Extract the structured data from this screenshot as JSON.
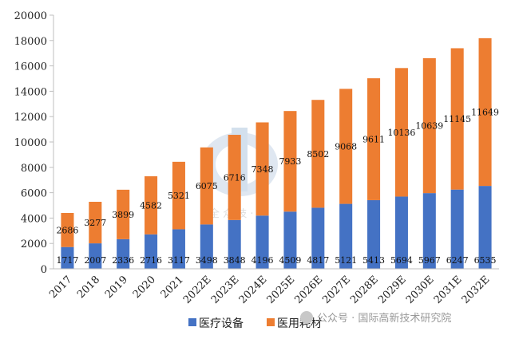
{
  "chart_data": {
    "type": "bar",
    "stacked": true,
    "categories": [
      "2017",
      "2018",
      "2019",
      "2020",
      "2021",
      "2022E",
      "2023E",
      "2024E",
      "2025E",
      "2026E",
      "2027E",
      "2028E",
      "2029E",
      "2030E",
      "2031E",
      "2032E"
    ],
    "series": [
      {
        "name": "医疗设备",
        "color": "#4472C4",
        "values": [
          1717,
          2007,
          2336,
          2716,
          3117,
          3498,
          3848,
          4196,
          4509,
          4817,
          5121,
          5413,
          5694,
          5967,
          6247,
          6535
        ]
      },
      {
        "name": "医用耗材",
        "color": "#ED7D31",
        "values": [
          2686,
          3277,
          3899,
          4582,
          5321,
          6075,
          6716,
          7348,
          7933,
          8502,
          9068,
          9611,
          10136,
          10639,
          11145,
          11649
        ]
      }
    ],
    "ylim": [
      0,
      20000
    ],
    "yticks": [
      0,
      2000,
      4000,
      6000,
      8000,
      10000,
      12000,
      14000,
      16000,
      18000,
      20000
    ],
    "legend_position": "bottom",
    "grid": false
  },
  "watermark": {
    "logo_text": "全 众 技 · 究",
    "text": "公众号 · 国际高新技术研究院"
  }
}
